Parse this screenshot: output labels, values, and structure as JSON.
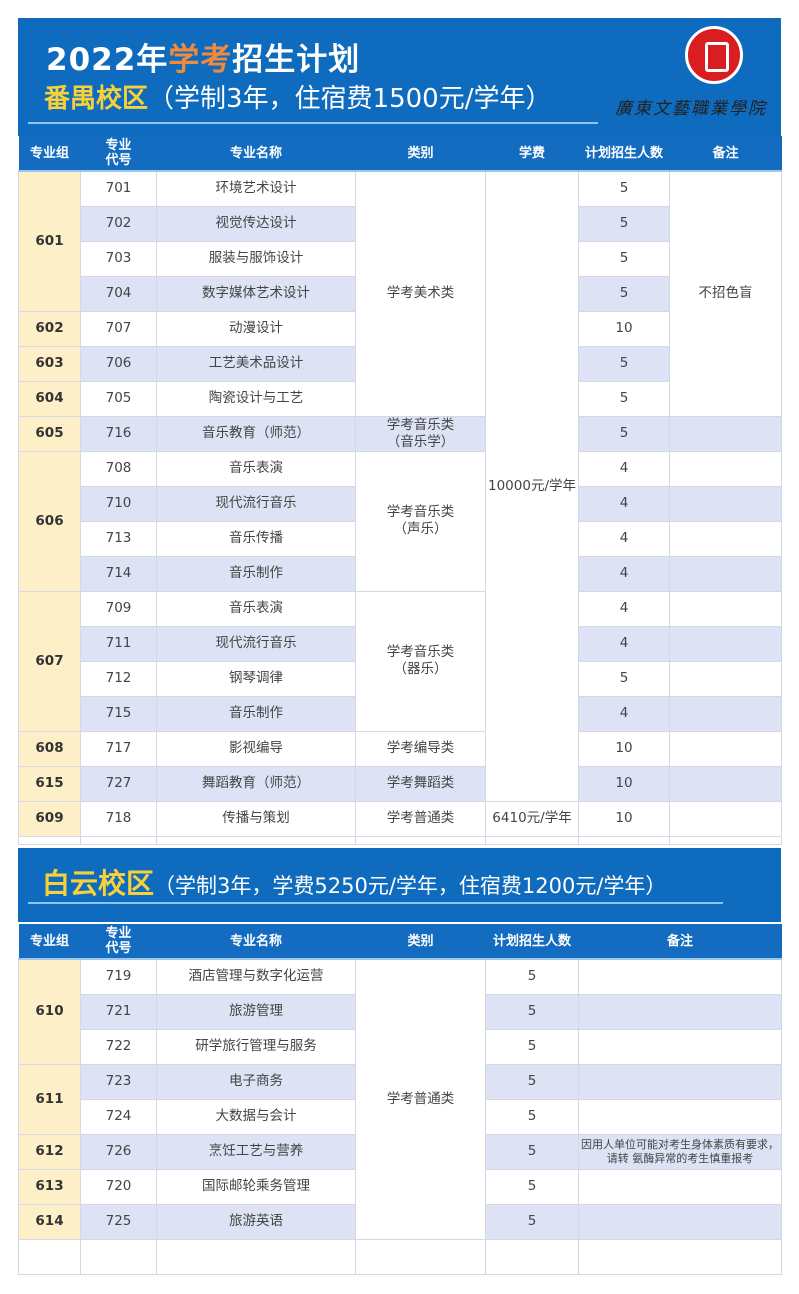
{
  "header": {
    "year": "2022年",
    "highlight": "学考",
    "title_rest": "招生计划",
    "logo_text": "廣東文藝職業學院"
  },
  "campus1": {
    "name": "番禺校区",
    "info": "（学制3年，住宿费1500元/学年）"
  },
  "campus2": {
    "name": "白云校区",
    "info": "（学制3年，学费5250元/学年，住宿费1200元/学年）"
  },
  "table1": {
    "headers": [
      "专业组",
      "专业代号",
      "专业名称",
      "类别",
      "学费",
      "计划招生人数",
      "备注"
    ],
    "rows": [
      [
        "601",
        "701",
        "环境艺术设计",
        "5"
      ],
      [
        "",
        "702",
        "视觉传达设计",
        "5"
      ],
      [
        "",
        "703",
        "服装与服饰设计",
        "5"
      ],
      [
        "",
        "704",
        "数字媒体艺术设计",
        "5"
      ],
      [
        "602",
        "707",
        "动漫设计",
        "10"
      ],
      [
        "603",
        "706",
        "工艺美术品设计",
        "5"
      ],
      [
        "604",
        "705",
        "陶瓷设计与工艺",
        "5"
      ],
      [
        "605",
        "716",
        "音乐教育（师范）",
        "5"
      ],
      [
        "606",
        "708",
        "音乐表演",
        "4"
      ],
      [
        "",
        "710",
        "现代流行音乐",
        "4"
      ],
      [
        "",
        "713",
        "音乐传播",
        "4"
      ],
      [
        "",
        "714",
        "音乐制作",
        "4"
      ],
      [
        "607",
        "709",
        "音乐表演",
        "4"
      ],
      [
        "",
        "711",
        "现代流行音乐",
        "4"
      ],
      [
        "",
        "712",
        "钢琴调律",
        "5"
      ],
      [
        "",
        "715",
        "音乐制作",
        "4"
      ],
      [
        "608",
        "717",
        "影视编导",
        "10"
      ],
      [
        "615",
        "727",
        "舞蹈教育（师范）",
        "10"
      ],
      [
        "609",
        "718",
        "传播与策划",
        "10"
      ]
    ],
    "groups": [
      [
        0,
        4
      ],
      [
        4,
        1
      ],
      [
        5,
        1
      ],
      [
        6,
        1
      ],
      [
        7,
        1
      ],
      [
        8,
        4
      ],
      [
        12,
        4
      ],
      [
        16,
        1
      ],
      [
        17,
        1
      ],
      [
        18,
        1
      ]
    ],
    "categories": [
      {
        "start": 0,
        "len": 7,
        "text": "学考美术类"
      },
      {
        "start": 7,
        "len": 1,
        "text": "学考音乐类\n（音乐学）"
      },
      {
        "start": 8,
        "len": 4,
        "text": "学考音乐类\n（声乐）"
      },
      {
        "start": 12,
        "len": 4,
        "text": "学考音乐类\n（器乐）"
      },
      {
        "start": 16,
        "len": 1,
        "text": "学考编导类"
      },
      {
        "start": 17,
        "len": 1,
        "text": "学考舞蹈类"
      },
      {
        "start": 18,
        "len": 1,
        "text": "学考普通类"
      }
    ],
    "fees": [
      {
        "start": 0,
        "len": 18,
        "text": "10000元/学年"
      },
      {
        "start": 18,
        "len": 1,
        "text": "6410元/学年"
      }
    ],
    "remarks": [
      {
        "start": 0,
        "len": 7,
        "text": "不招色盲"
      }
    ]
  },
  "table2": {
    "headers": [
      "专业组",
      "专业代号",
      "专业名称",
      "类别",
      "计划招生人数",
      "备注"
    ],
    "rows": [
      [
        "610",
        "719",
        "酒店管理与数字化运营",
        "5"
      ],
      [
        "",
        "721",
        "旅游管理",
        "5"
      ],
      [
        "",
        "722",
        "研学旅行管理与服务",
        "5"
      ],
      [
        "611",
        "723",
        "电子商务",
        "5"
      ],
      [
        "",
        "724",
        "大数据与会计",
        "5"
      ],
      [
        "612",
        "726",
        "烹饪工艺与营养",
        "5"
      ],
      [
        "613",
        "720",
        "国际邮轮乘务管理",
        "5"
      ],
      [
        "614",
        "725",
        "旅游英语",
        "5"
      ]
    ],
    "groups": [
      [
        0,
        3
      ],
      [
        3,
        2
      ],
      [
        5,
        1
      ],
      [
        6,
        1
      ],
      [
        7,
        1
      ]
    ],
    "categories": [
      {
        "start": 0,
        "len": 8,
        "text": "学考普通类"
      }
    ],
    "remarks": [
      {
        "start": 5,
        "len": 1,
        "text": "因用人单位可能对考生身体素质有要求，请转 氨酶异常的考生慎重报考"
      }
    ]
  },
  "colors": {
    "banner": "#0f6bbd",
    "shade": "#dde3f4",
    "group": "#fdf0c8",
    "campus": "#f7d13a",
    "highlight": "#f08a3c"
  }
}
